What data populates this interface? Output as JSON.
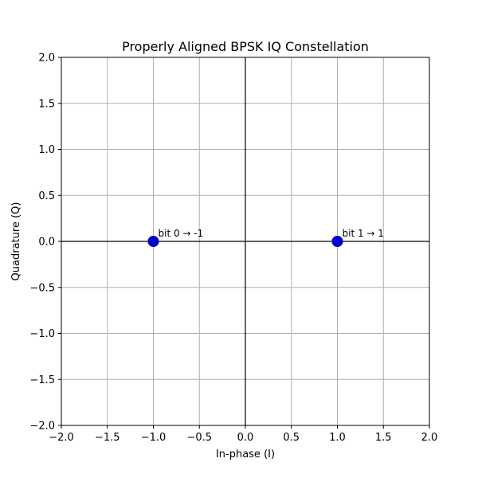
{
  "chart_data": {
    "type": "scatter",
    "title": "Properly Aligned BPSK IQ Constellation",
    "xlabel": "In-phase (I)",
    "ylabel": "Quadrature (Q)",
    "xlim": [
      -2.0,
      2.0
    ],
    "ylim": [
      -2.0,
      2.0
    ],
    "xticks": [
      -2.0,
      -1.5,
      -1.0,
      -0.5,
      0.0,
      0.5,
      1.0,
      1.5,
      2.0
    ],
    "yticks": [
      -2.0,
      -1.5,
      -1.0,
      -0.5,
      0.0,
      0.5,
      1.0,
      1.5,
      2.0
    ],
    "xtick_labels": [
      "−2.0",
      "−1.5",
      "−1.0",
      "−0.5",
      "0.0",
      "0.5",
      "1.0",
      "1.5",
      "2.0"
    ],
    "ytick_labels": [
      "−2.0",
      "−1.5",
      "−1.0",
      "−0.5",
      "0.0",
      "0.5",
      "1.0",
      "1.5",
      "2.0"
    ],
    "grid": true,
    "zero_lines": true,
    "series": [
      {
        "color": "#0000cc",
        "points": [
          {
            "x": -1,
            "y": 0,
            "label": "bit 0 → -1"
          },
          {
            "x": 1,
            "y": 0,
            "label": "bit 1 → 1"
          }
        ]
      }
    ],
    "colors": {
      "grid": "#b0b0b0",
      "axes": "#000000",
      "zero_line": "#000000"
    }
  }
}
